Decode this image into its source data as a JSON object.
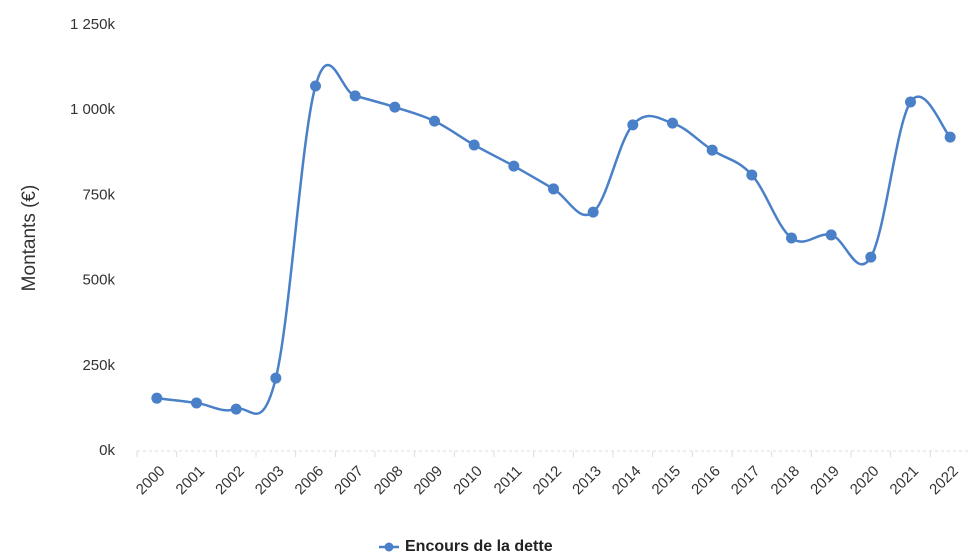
{
  "chart_data": {
    "type": "line",
    "y_label": "Montants (€)",
    "categories": [
      "2000",
      "2001",
      "2002",
      "2003",
      "2006",
      "2007",
      "2008",
      "2009",
      "2010",
      "2011",
      "2012",
      "2013",
      "2014",
      "2015",
      "2016",
      "2017",
      "2018",
      "2019",
      "2020",
      "2021",
      "2022"
    ],
    "series": [
      {
        "name": "Encours de la dette",
        "color": "#4a80c8",
        "values": [
          155000,
          141000,
          123000,
          214000,
          1071000,
          1042000,
          1009000,
          968000,
          898000,
          836000,
          769000,
          701000,
          957000,
          962000,
          883000,
          810000,
          625000,
          634000,
          569000,
          1024000,
          921000
        ]
      }
    ],
    "ylim": [
      0,
      1250000
    ],
    "yticks": [
      {
        "value": 0,
        "label": "0k"
      },
      {
        "value": 250000,
        "label": "250k"
      },
      {
        "value": 500000,
        "label": "500k"
      },
      {
        "value": 750000,
        "label": "750k"
      },
      {
        "value": 1000000,
        "label": "1 000k"
      },
      {
        "value": 1250000,
        "label": "1 250k"
      }
    ],
    "legend": "bottom"
  }
}
